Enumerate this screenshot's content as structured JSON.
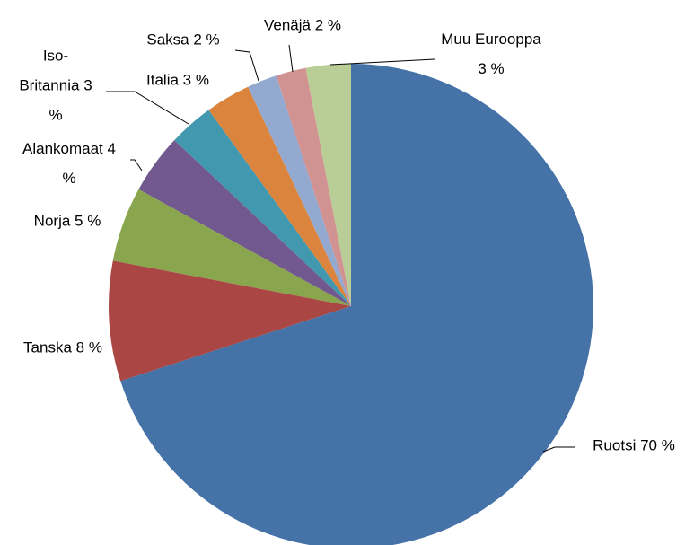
{
  "chart_data": {
    "type": "pie",
    "categories": [
      "Ruotsi",
      "Tanska",
      "Norja",
      "Alankomaat",
      "Iso-Britannia",
      "Italia",
      "Saksa",
      "Venäjä",
      "Muu Eurooppa"
    ],
    "values": [
      70,
      8,
      5,
      4,
      3,
      3,
      2,
      2,
      3
    ],
    "value_labels": [
      "70 %",
      "8 %",
      "5 %",
      "4 %",
      "3 %",
      "3 %",
      "2 %",
      "2 %",
      "3 %"
    ],
    "colors": [
      "#4572a7",
      "#aa4643",
      "#89a54e",
      "#71588f",
      "#4198af",
      "#db843d",
      "#93a9cf",
      "#d19392",
      "#b9cd96"
    ]
  }
}
